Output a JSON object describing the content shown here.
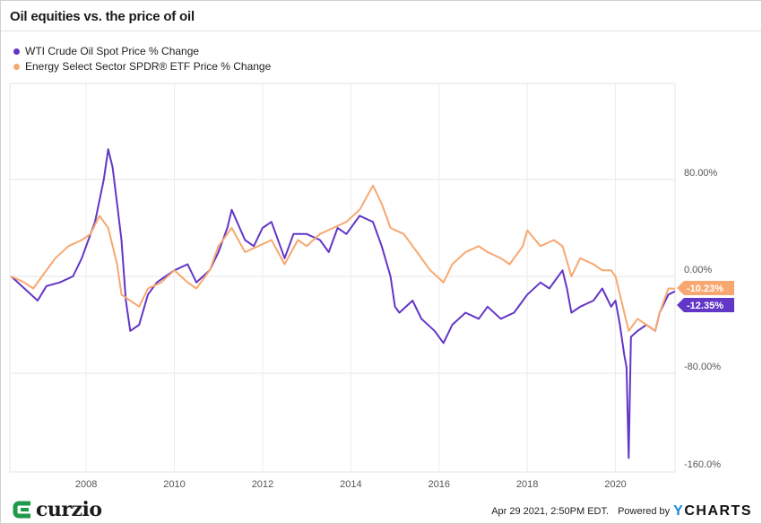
{
  "chart_data": {
    "type": "line",
    "title": "Oil equities vs. the price of oil",
    "xlabel": "",
    "ylabel": "",
    "xlim": [
      2006.27,
      2021.35
    ],
    "ylim": [
      -160,
      100
    ],
    "y_ticks": [
      80,
      0,
      -80,
      -160
    ],
    "y_tick_labels": [
      "80.00%",
      "0.00%",
      "-80.00%",
      "-160.0%"
    ],
    "x_ticks": [
      2008,
      2010,
      2012,
      2014,
      2016,
      2018,
      2020
    ],
    "x_tick_labels": [
      "2008",
      "2010",
      "2012",
      "2014",
      "2016",
      "2018",
      "2020"
    ],
    "grid": true,
    "legend_position": "top-left",
    "series": [
      {
        "name": "WTI Crude Oil Spot Price % Change",
        "color": "#6236c6",
        "last_label": "-12.35%",
        "x": [
          2006.3,
          2006.6,
          2006.9,
          2007.1,
          2007.4,
          2007.7,
          2007.9,
          2008.0,
          2008.2,
          2008.4,
          2008.5,
          2008.6,
          2008.7,
          2008.8,
          2008.9,
          2009.0,
          2009.2,
          2009.4,
          2009.6,
          2009.8,
          2010.0,
          2010.3,
          2010.5,
          2010.8,
          2011.0,
          2011.2,
          2011.3,
          2011.6,
          2011.8,
          2012.0,
          2012.2,
          2012.5,
          2012.7,
          2013.0,
          2013.3,
          2013.5,
          2013.7,
          2013.9,
          2014.2,
          2014.5,
          2014.7,
          2014.9,
          2015.0,
          2015.1,
          2015.4,
          2015.6,
          2015.9,
          2016.1,
          2016.3,
          2016.6,
          2016.9,
          2017.1,
          2017.4,
          2017.7,
          2018.0,
          2018.3,
          2018.5,
          2018.8,
          2018.9,
          2019.0,
          2019.2,
          2019.5,
          2019.7,
          2019.9,
          2020.0,
          2020.1,
          2020.2,
          2020.25,
          2020.3,
          2020.35,
          2020.5,
          2020.7,
          2020.9,
          2021.0,
          2021.2,
          2021.35
        ],
        "y": [
          0,
          -10,
          -20,
          -8,
          -5,
          0,
          15,
          25,
          45,
          80,
          105,
          90,
          60,
          30,
          -20,
          -45,
          -40,
          -15,
          -5,
          0,
          5,
          10,
          -5,
          5,
          20,
          40,
          55,
          30,
          25,
          40,
          45,
          15,
          35,
          35,
          30,
          20,
          40,
          35,
          50,
          45,
          25,
          0,
          -25,
          -30,
          -20,
          -35,
          -45,
          -55,
          -40,
          -30,
          -35,
          -25,
          -35,
          -30,
          -15,
          -5,
          -10,
          5,
          -10,
          -30,
          -25,
          -20,
          -10,
          -25,
          -20,
          -40,
          -65,
          -75,
          -150,
          -50,
          -45,
          -40,
          -45,
          -30,
          -15,
          -12.35
        ]
      },
      {
        "name": "Energy Select Sector SPDR® ETF Price % Change",
        "color": "#f7a870",
        "last_label": "-10.23%",
        "x": [
          2006.3,
          2006.6,
          2006.8,
          2007.0,
          2007.3,
          2007.6,
          2007.9,
          2008.1,
          2008.3,
          2008.5,
          2008.7,
          2008.8,
          2009.0,
          2009.2,
          2009.4,
          2009.7,
          2010.0,
          2010.3,
          2010.5,
          2010.8,
          2011.0,
          2011.3,
          2011.6,
          2011.9,
          2012.2,
          2012.5,
          2012.8,
          2013.0,
          2013.3,
          2013.6,
          2013.9,
          2014.2,
          2014.5,
          2014.7,
          2014.9,
          2015.2,
          2015.5,
          2015.8,
          2016.1,
          2016.3,
          2016.6,
          2016.9,
          2017.1,
          2017.4,
          2017.6,
          2017.9,
          2018.0,
          2018.3,
          2018.6,
          2018.8,
          2019.0,
          2019.2,
          2019.5,
          2019.7,
          2019.9,
          2020.0,
          2020.2,
          2020.3,
          2020.5,
          2020.7,
          2020.9,
          2021.0,
          2021.2,
          2021.35
        ],
        "y": [
          0,
          -5,
          -10,
          0,
          15,
          25,
          30,
          35,
          50,
          40,
          10,
          -15,
          -20,
          -25,
          -10,
          -5,
          5,
          -5,
          -10,
          5,
          25,
          40,
          20,
          25,
          30,
          10,
          30,
          25,
          35,
          40,
          45,
          55,
          75,
          60,
          40,
          35,
          20,
          5,
          -5,
          10,
          20,
          25,
          20,
          15,
          10,
          25,
          38,
          25,
          30,
          25,
          0,
          15,
          10,
          5,
          5,
          0,
          -30,
          -45,
          -35,
          -40,
          -45,
          -30,
          -10,
          -10.23
        ]
      }
    ]
  },
  "footer": {
    "timestamp": "Apr 29 2021, 2:50PM EDT.",
    "powered_by": "Powered by",
    "brand_y": "Y",
    "brand_rest": "CHARTS"
  },
  "logo": {
    "text": "curzio"
  }
}
